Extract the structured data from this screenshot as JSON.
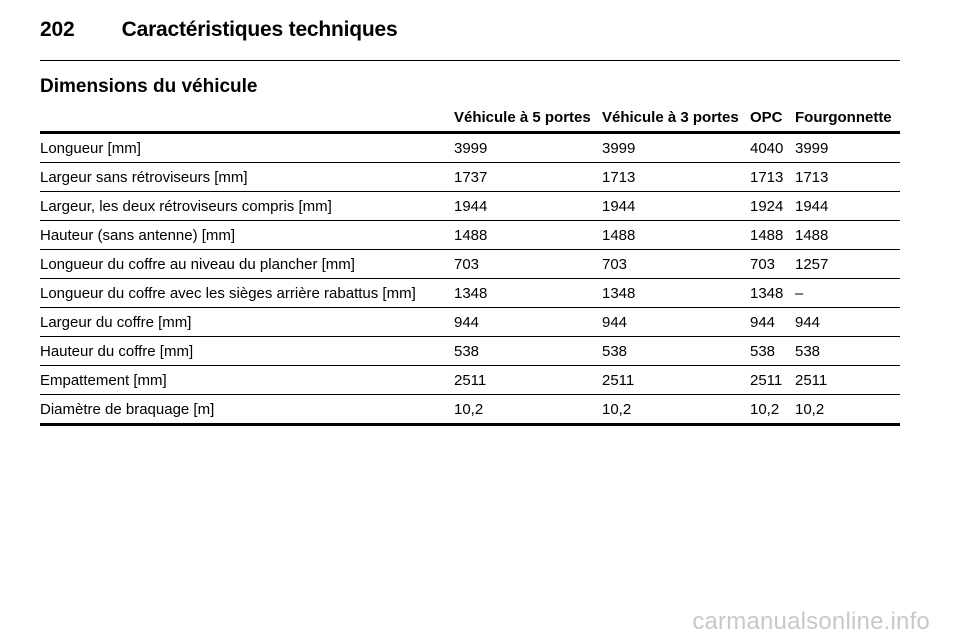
{
  "header": {
    "page_number": "202",
    "title": "Caractéristiques techniques"
  },
  "section": {
    "title": "Dimensions du véhicule"
  },
  "table": {
    "columns": [
      "",
      "Véhicule à 5 portes",
      "Véhicule à 3 portes",
      "OPC",
      "Fourgonnette"
    ],
    "rows": [
      [
        "Longueur [mm]",
        "3999",
        "3999",
        "4040",
        "3999"
      ],
      [
        "Largeur sans rétroviseurs [mm]",
        "1737",
        "1713",
        "1713",
        "1713"
      ],
      [
        "Largeur, les deux rétroviseurs compris [mm]",
        "1944",
        "1944",
        "1924",
        "1944"
      ],
      [
        "Hauteur (sans antenne) [mm]",
        "1488",
        "1488",
        "1488",
        "1488"
      ],
      [
        "Longueur du coffre au niveau du plancher [mm]",
        "703",
        "703",
        "703",
        "1257"
      ],
      [
        "Longueur du coffre avec les sièges arrière rabattus [mm]",
        "1348",
        "1348",
        "1348",
        "–"
      ],
      [
        "Largeur du coffre [mm]",
        "944",
        "944",
        "944",
        "944"
      ],
      [
        "Hauteur du coffre [mm]",
        "538",
        "538",
        "538",
        "538"
      ],
      [
        "Empattement [mm]",
        "2511",
        "2511",
        "2511",
        "2511"
      ],
      [
        "Diamètre de braquage [m]",
        "10,2",
        "10,2",
        "10,2",
        "10,2"
      ]
    ]
  },
  "watermark": "carmanualsonline.info"
}
